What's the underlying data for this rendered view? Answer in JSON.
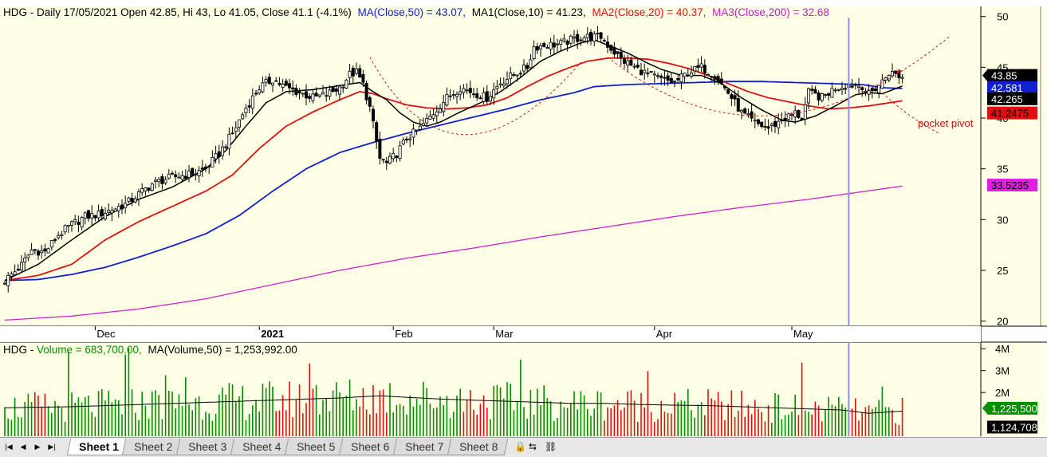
{
  "price_header": {
    "prefix": "HDG - Daily 17/05/2021 Open 42.85, Hi 43, Lo 41.05, Close 41.1 (-4.1%)",
    "ma50": "MA(Close,50) = 43.07,",
    "ma10": "MA1(Close,10) = 41.23,",
    "ma20": "MA2(Close,20) = 40.37,",
    "ma200": "MA3(Close,200) = 32.68"
  },
  "volume_header": {
    "prefix": "HDG - ",
    "vol": "Volume = 683,700.00,",
    "ma": "MA(Volume,50) = 1,253,992.00"
  },
  "annotation": "pocket pivot",
  "price_axis": {
    "ticks": [
      "50",
      "45",
      "40",
      "35",
      "30",
      "25",
      "20"
    ],
    "values": [
      50,
      45,
      40,
      35,
      30,
      25,
      20
    ],
    "ylim": [
      19.5,
      51
    ]
  },
  "volume_axis": {
    "ticks": [
      "4M",
      "3M",
      "2M"
    ],
    "values": [
      4000000,
      3000000,
      2000000
    ],
    "ylim": [
      0,
      4300000
    ]
  },
  "x_labels": [
    {
      "text": "Dec",
      "bar": 27
    },
    {
      "text": "2021",
      "bar": 76
    },
    {
      "text": "Feb",
      "bar": 116
    },
    {
      "text": "Mar",
      "bar": 146
    },
    {
      "text": "Apr",
      "bar": 194
    },
    {
      "text": "May",
      "bar": 235
    }
  ],
  "badges": {
    "close": "43.85",
    "ma50": "42.581",
    "ma10": "42.265",
    "ma20": "41.2475",
    "ma200": "33.5235",
    "vol": "1,225,500",
    "volma": "1,124,708"
  },
  "sheets": [
    "Sheet 1",
    "Sheet 2",
    "Sheet 3",
    "Sheet 4",
    "Sheet 5",
    "Sheet 6",
    "Sheet 7",
    "Sheet 8"
  ],
  "colors": {
    "background": "#ffffe6",
    "up": "#ffffff",
    "down": "#000000",
    "ma10": "#000000",
    "ma20": "#e01010",
    "ma50": "#1020d0",
    "ma200": "#d020d0",
    "vol_up": "#009000",
    "vol_down": "#e01010",
    "cursor": "#9090e0"
  },
  "chart_data": {
    "type": "candlestick",
    "cursor_bar": 252,
    "series_knots": {
      "close": [
        [
          0,
          24
        ],
        [
          5,
          25.5
        ],
        [
          8,
          27
        ],
        [
          12,
          26.8
        ],
        [
          16,
          28.5
        ],
        [
          20,
          29.5
        ],
        [
          24,
          30.3
        ],
        [
          28,
          30.5
        ],
        [
          32,
          31
        ],
        [
          36,
          31.5
        ],
        [
          40,
          32.5
        ],
        [
          44,
          33.5
        ],
        [
          48,
          34
        ],
        [
          52,
          34.3
        ],
        [
          56,
          34.5
        ],
        [
          60,
          35
        ],
        [
          64,
          36.5
        ],
        [
          68,
          38.5
        ],
        [
          72,
          41
        ],
        [
          76,
          43
        ],
        [
          80,
          43.8
        ],
        [
          84,
          43
        ],
        [
          88,
          42.5
        ],
        [
          92,
          42
        ],
        [
          96,
          42.3
        ],
        [
          100,
          43
        ],
        [
          103,
          44.3
        ],
        [
          105,
          44.5
        ],
        [
          107,
          43.3
        ],
        [
          109,
          41
        ],
        [
          112,
          36
        ],
        [
          114,
          35.5
        ],
        [
          117,
          36.5
        ],
        [
          120,
          38
        ],
        [
          124,
          39
        ],
        [
          128,
          40.5
        ],
        [
          132,
          42
        ],
        [
          136,
          43
        ],
        [
          140,
          42.5
        ],
        [
          144,
          42
        ],
        [
          148,
          43.5
        ],
        [
          152,
          44.3
        ],
        [
          156,
          45
        ],
        [
          158,
          47
        ],
        [
          162,
          47.2
        ],
        [
          166,
          47.3
        ],
        [
          170,
          47.8
        ],
        [
          174,
          48
        ],
        [
          178,
          48
        ],
        [
          180,
          47.2
        ],
        [
          184,
          45.8
        ],
        [
          188,
          45
        ],
        [
          192,
          44.3
        ],
        [
          196,
          43.8
        ],
        [
          200,
          43.5
        ],
        [
          204,
          44.5
        ],
        [
          208,
          45
        ],
        [
          212,
          44.2
        ],
        [
          216,
          42.5
        ],
        [
          220,
          40.5
        ],
        [
          224,
          39.5
        ],
        [
          228,
          39
        ],
        [
          232,
          39.8
        ],
        [
          236,
          40.5
        ],
        [
          238,
          40
        ],
        [
          240,
          42.5
        ],
        [
          244,
          42
        ],
        [
          248,
          43
        ],
        [
          252,
          43.3
        ],
        [
          256,
          43.2
        ],
        [
          258,
          42.3
        ],
        [
          262,
          43.6
        ],
        [
          264,
          44.5
        ],
        [
          266,
          44.3
        ],
        [
          268,
          44
        ]
      ],
      "ma10": [
        [
          0,
          24
        ],
        [
          10,
          25.6
        ],
        [
          20,
          28
        ],
        [
          30,
          30.3
        ],
        [
          40,
          32
        ],
        [
          50,
          33.2
        ],
        [
          60,
          35
        ],
        [
          66,
          36.8
        ],
        [
          72,
          39.2
        ],
        [
          78,
          41.5
        ],
        [
          84,
          42.6
        ],
        [
          92,
          42.8
        ],
        [
          100,
          43.2
        ],
        [
          106,
          43.5
        ],
        [
          110,
          42.6
        ],
        [
          114,
          41.8
        ],
        [
          118,
          40.5
        ],
        [
          122,
          39.6
        ],
        [
          126,
          39.2
        ],
        [
          130,
          39.6
        ],
        [
          136,
          40.6
        ],
        [
          142,
          41.5
        ],
        [
          148,
          42.6
        ],
        [
          154,
          44
        ],
        [
          160,
          45.6
        ],
        [
          166,
          46.6
        ],
        [
          172,
          47.4
        ],
        [
          176,
          47.7
        ],
        [
          180,
          47.2
        ],
        [
          186,
          46.4
        ],
        [
          192,
          45.4
        ],
        [
          196,
          44.8
        ],
        [
          202,
          44.2
        ],
        [
          208,
          44.2
        ],
        [
          214,
          43.4
        ],
        [
          220,
          42
        ],
        [
          226,
          40.8
        ],
        [
          232,
          39.8
        ],
        [
          236,
          39.6
        ],
        [
          242,
          40.2
        ],
        [
          248,
          41.2
        ],
        [
          254,
          42.3
        ],
        [
          258,
          42.5
        ],
        [
          262,
          42.4
        ],
        [
          266,
          42.9
        ],
        [
          268,
          43.15
        ]
      ],
      "ma20": [
        [
          0,
          24
        ],
        [
          10,
          24.5
        ],
        [
          20,
          25.6
        ],
        [
          30,
          28
        ],
        [
          40,
          29.8
        ],
        [
          50,
          31.3
        ],
        [
          60,
          32.8
        ],
        [
          68,
          34.4
        ],
        [
          76,
          37
        ],
        [
          84,
          39.2
        ],
        [
          92,
          40.6
        ],
        [
          100,
          41.8
        ],
        [
          106,
          42.6
        ],
        [
          110,
          42.4
        ],
        [
          114,
          41.9
        ],
        [
          120,
          41.3
        ],
        [
          126,
          41
        ],
        [
          132,
          40.9
        ],
        [
          138,
          41
        ],
        [
          144,
          41.3
        ],
        [
          150,
          42
        ],
        [
          156,
          43.1
        ],
        [
          162,
          44.1
        ],
        [
          168,
          44.9
        ],
        [
          174,
          45.6
        ],
        [
          180,
          45.9
        ],
        [
          186,
          45.9
        ],
        [
          192,
          45.8
        ],
        [
          198,
          45.4
        ],
        [
          204,
          44.9
        ],
        [
          210,
          44.2
        ],
        [
          216,
          43.4
        ],
        [
          222,
          42.6
        ],
        [
          228,
          42
        ],
        [
          234,
          41.6
        ],
        [
          240,
          41.2
        ],
        [
          246,
          40.9
        ],
        [
          252,
          41
        ],
        [
          258,
          41.2
        ],
        [
          264,
          41.5
        ],
        [
          268,
          41.7
        ]
      ],
      "ma50": [
        [
          0,
          24
        ],
        [
          10,
          24.1
        ],
        [
          20,
          24.6
        ],
        [
          30,
          25.3
        ],
        [
          40,
          26.3
        ],
        [
          50,
          27.4
        ],
        [
          60,
          28.6
        ],
        [
          70,
          30.4
        ],
        [
          80,
          32.8
        ],
        [
          90,
          35
        ],
        [
          100,
          36.6
        ],
        [
          110,
          37.6
        ],
        [
          120,
          38.5
        ],
        [
          130,
          39.3
        ],
        [
          140,
          40.1
        ],
        [
          150,
          40.9
        ],
        [
          160,
          41.8
        ],
        [
          170,
          42.5
        ],
        [
          176,
          43.1
        ],
        [
          186,
          43.3
        ],
        [
          196,
          43.4
        ],
        [
          206,
          43.5
        ],
        [
          216,
          43.6
        ],
        [
          226,
          43.6
        ],
        [
          236,
          43.5
        ],
        [
          246,
          43.4
        ],
        [
          256,
          43.3
        ],
        [
          262,
          43
        ],
        [
          268,
          42.9
        ]
      ],
      "ma200": [
        [
          0,
          20.1
        ],
        [
          20,
          20.5
        ],
        [
          40,
          21.2
        ],
        [
          60,
          22.2
        ],
        [
          80,
          23.6
        ],
        [
          100,
          25
        ],
        [
          120,
          26.2
        ],
        [
          140,
          27.2
        ],
        [
          160,
          28.3
        ],
        [
          180,
          29.3
        ],
        [
          200,
          30.3
        ],
        [
          220,
          31.2
        ],
        [
          240,
          32
        ],
        [
          255,
          32.7
        ],
        [
          268,
          33.3
        ]
      ],
      "volume": [
        [
          0,
          1.3
        ],
        [
          20,
          1.35
        ],
        [
          40,
          1.45
        ],
        [
          60,
          1.55
        ],
        [
          80,
          1.65
        ],
        [
          100,
          1.75
        ],
        [
          112,
          1.85
        ],
        [
          120,
          1.78
        ],
        [
          130,
          1.7
        ],
        [
          140,
          1.65
        ],
        [
          150,
          1.6
        ],
        [
          160,
          1.55
        ],
        [
          170,
          1.5
        ],
        [
          180,
          1.5
        ],
        [
          190,
          1.45
        ],
        [
          200,
          1.42
        ],
        [
          210,
          1.4
        ],
        [
          220,
          1.35
        ],
        [
          230,
          1.3
        ],
        [
          240,
          1.25
        ],
        [
          250,
          1.2
        ],
        [
          258,
          1.05
        ],
        [
          268,
          1.15
        ]
      ]
    },
    "pocket_pivot_arcs": [
      "Feb cup",
      "Mar-May cup"
    ]
  }
}
